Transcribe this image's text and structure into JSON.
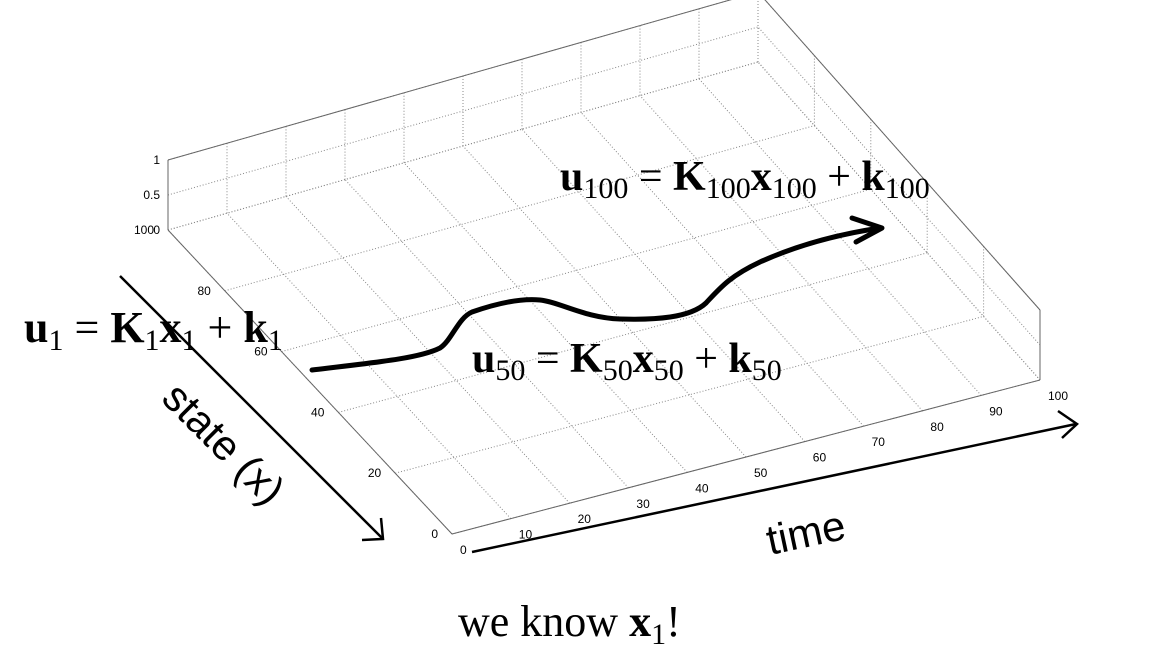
{
  "diagram": {
    "z_ticks": [
      "0",
      "0.5",
      "1"
    ],
    "state_ticks": [
      "0",
      "20",
      "40",
      "60",
      "80",
      "100"
    ],
    "time_ticks": [
      "0",
      "10",
      "20",
      "30",
      "40",
      "50",
      "60",
      "70",
      "80",
      "90",
      "100"
    ],
    "state_axis_label": "state (x)",
    "time_axis_label": "time",
    "equations": {
      "u1": {
        "u": "u",
        "u_sub": "1",
        "K": "K",
        "K_sub": "1",
        "x": "x",
        "x_sub": "1",
        "k": "k",
        "k_sub": "1"
      },
      "u50": {
        "u": "u",
        "u_sub": "50",
        "K": "K",
        "K_sub": "50",
        "x": "x",
        "x_sub": "50",
        "k": "k",
        "k_sub": "50"
      },
      "u100": {
        "u": "u",
        "u_sub": "100",
        "K": "K",
        "K_sub": "100",
        "x": "x",
        "x_sub": "100",
        "k": "k",
        "k_sub": "100"
      }
    },
    "caption": {
      "prefix": "we know ",
      "x": "x",
      "x_sub": "1",
      "suffix": "!"
    }
  }
}
